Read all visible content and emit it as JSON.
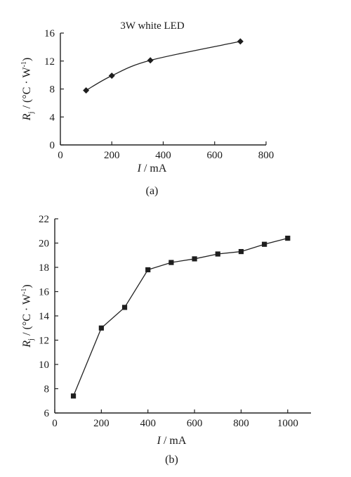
{
  "chart_data": [
    {
      "type": "line",
      "caption": "(a)",
      "title": "3W white LED",
      "xlabel": {
        "var": "I",
        "unit": " / mA"
      },
      "ylabel": {
        "var": "R",
        "sub": "j",
        "unit": " / (°C · W",
        "sup": "-1",
        "close": ")"
      },
      "xlim": [
        0,
        800
      ],
      "ylim": [
        0,
        16
      ],
      "xticks": [
        0,
        200,
        400,
        600,
        800
      ],
      "yticks": [
        0,
        4,
        8,
        12,
        16
      ],
      "marker": "diamond",
      "line_style": "smooth",
      "x": [
        100,
        200,
        350,
        700
      ],
      "y": [
        7.8,
        9.9,
        12.1,
        14.8
      ]
    },
    {
      "type": "line",
      "caption": "(b)",
      "title": "",
      "xlabel": {
        "var": "I",
        "unit": " / mA"
      },
      "ylabel": {
        "var": "R",
        "sub": "j",
        "unit": " / (°C · W",
        "sup": "-1",
        "close": ")"
      },
      "xlim": [
        0,
        1100
      ],
      "ylim": [
        6,
        22
      ],
      "xticks": [
        0,
        200,
        400,
        600,
        800,
        1000
      ],
      "yticks": [
        6,
        8,
        10,
        12,
        14,
        16,
        18,
        20,
        22
      ],
      "marker": "square",
      "line_style": "straight",
      "x": [
        80,
        200,
        300,
        400,
        500,
        600,
        700,
        800,
        900,
        1000
      ],
      "y": [
        7.4,
        13.0,
        14.7,
        17.8,
        18.4,
        18.7,
        19.1,
        19.3,
        19.9,
        20.4
      ]
    }
  ]
}
